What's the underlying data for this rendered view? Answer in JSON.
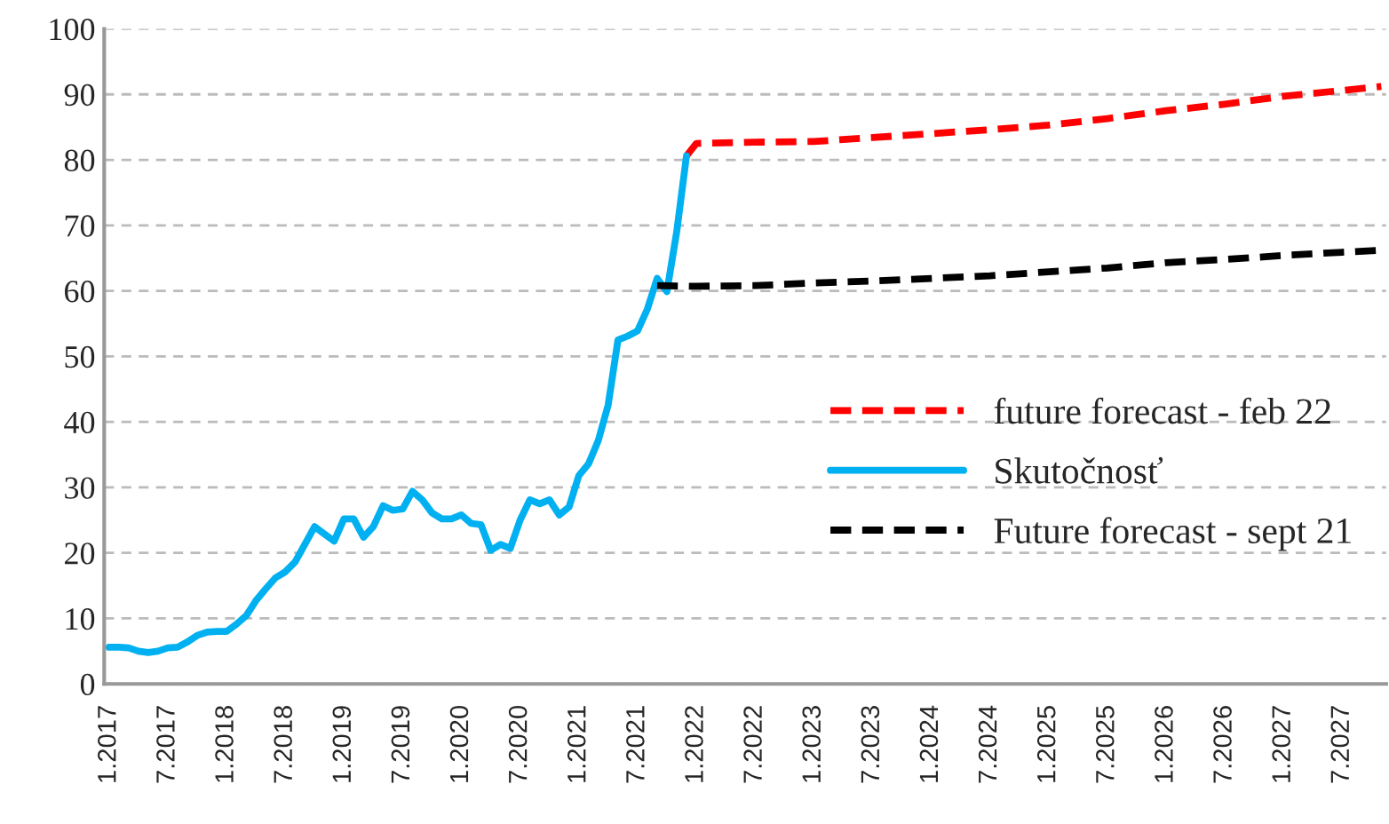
{
  "chart_data": {
    "type": "line",
    "categories": [
      "1.2017",
      null,
      null,
      null,
      null,
      null,
      "7.2017",
      null,
      null,
      null,
      null,
      null,
      "1.2018",
      null,
      null,
      null,
      null,
      null,
      "7.2018",
      null,
      null,
      null,
      null,
      null,
      "1.2019",
      null,
      null,
      null,
      null,
      null,
      "7.2019",
      null,
      null,
      null,
      null,
      null,
      "1.2020",
      null,
      null,
      null,
      null,
      null,
      "7.2020",
      null,
      null,
      null,
      null,
      null,
      "1.2021",
      null,
      null,
      null,
      null,
      null,
      "7.2021",
      null,
      null,
      null,
      null,
      null,
      "1.2022",
      null,
      null,
      null,
      null,
      null,
      "7.2022",
      null,
      null,
      null,
      null,
      null,
      "1.2023",
      null,
      null,
      null,
      null,
      null,
      "7.2023",
      null,
      null,
      null,
      null,
      null,
      "1.2024",
      null,
      null,
      null,
      null,
      null,
      "7.2024",
      null,
      null,
      null,
      null,
      null,
      "1.2025",
      null,
      null,
      null,
      null,
      null,
      "7.2025",
      null,
      null,
      null,
      null,
      null,
      "1.2026",
      null,
      null,
      null,
      null,
      null,
      "7.2026",
      null,
      null,
      null,
      null,
      null,
      "1.2027",
      null,
      null,
      null,
      null,
      null,
      "7.2027",
      null,
      null,
      null,
      null
    ],
    "series": [
      {
        "name": "future forecast - feb 22",
        "color": "#ff0000",
        "line_style": "dashed",
        "values": [
          null,
          null,
          null,
          null,
          null,
          null,
          null,
          null,
          null,
          null,
          null,
          null,
          null,
          null,
          null,
          null,
          null,
          null,
          null,
          null,
          null,
          null,
          null,
          null,
          null,
          null,
          null,
          null,
          null,
          null,
          null,
          null,
          null,
          null,
          null,
          null,
          null,
          null,
          null,
          null,
          null,
          null,
          null,
          null,
          null,
          null,
          null,
          null,
          null,
          null,
          null,
          null,
          null,
          null,
          null,
          null,
          null,
          null,
          null,
          80.6,
          82.5,
          null,
          null,
          null,
          null,
          null,
          82.7,
          null,
          null,
          null,
          null,
          null,
          82.8,
          null,
          null,
          null,
          null,
          null,
          83.4,
          null,
          null,
          null,
          null,
          null,
          84.0,
          null,
          null,
          null,
          null,
          null,
          84.6,
          null,
          null,
          null,
          null,
          null,
          85.3,
          null,
          null,
          null,
          null,
          null,
          86.3,
          null,
          null,
          null,
          null,
          null,
          87.5,
          null,
          null,
          null,
          null,
          null,
          88.5,
          null,
          null,
          null,
          null,
          null,
          89.7,
          null,
          null,
          null,
          null,
          null,
          90.6,
          null,
          null,
          null,
          91.2
        ]
      },
      {
        "name": "Skutočnosť",
        "color": "#00b0f0",
        "line_style": "solid",
        "values": [
          5.6,
          5.6,
          5.5,
          5.0,
          4.8,
          5.0,
          5.5,
          5.6,
          6.4,
          7.4,
          7.9,
          8.0,
          8.0,
          9.1,
          10.4,
          12.7,
          14.5,
          16.2,
          17.1,
          18.6,
          21.3,
          24.0,
          22.9,
          21.8,
          25.2,
          25.2,
          22.4,
          24.0,
          27.2,
          26.5,
          26.7,
          29.4,
          28.1,
          26.1,
          25.2,
          25.2,
          25.8,
          24.5,
          24.3,
          20.4,
          21.3,
          20.7,
          25.0,
          28.1,
          27.5,
          28.1,
          25.8,
          27.0,
          31.8,
          33.6,
          37.2,
          42.6,
          52.5,
          53.1,
          53.9,
          57.2,
          61.9,
          59.9,
          69.0,
          80.6,
          null,
          null,
          null,
          null,
          null,
          null,
          null,
          null,
          null,
          null,
          null,
          null,
          null,
          null,
          null,
          null,
          null,
          null,
          null,
          null,
          null,
          null,
          null,
          null,
          null,
          null,
          null,
          null,
          null,
          null,
          null,
          null,
          null,
          null,
          null,
          null,
          null,
          null,
          null,
          null,
          null,
          null,
          null,
          null,
          null,
          null,
          null,
          null,
          null,
          null,
          null,
          null,
          null,
          null,
          null,
          null,
          null,
          null,
          null,
          null,
          null,
          null,
          null,
          null,
          null,
          null,
          null,
          null,
          null,
          null,
          null
        ]
      },
      {
        "name": "Future forecast - sept 21",
        "color": "#000000",
        "line_style": "dashed",
        "values": [
          null,
          null,
          null,
          null,
          null,
          null,
          null,
          null,
          null,
          null,
          null,
          null,
          null,
          null,
          null,
          null,
          null,
          null,
          null,
          null,
          null,
          null,
          null,
          null,
          null,
          null,
          null,
          null,
          null,
          null,
          null,
          null,
          null,
          null,
          null,
          null,
          null,
          null,
          null,
          null,
          null,
          null,
          null,
          null,
          null,
          null,
          null,
          null,
          null,
          null,
          null,
          null,
          null,
          null,
          null,
          null,
          60.8,
          null,
          null,
          null,
          60.7,
          null,
          null,
          null,
          null,
          null,
          60.8,
          null,
          null,
          null,
          null,
          null,
          61.2,
          null,
          null,
          null,
          null,
          null,
          61.5,
          null,
          null,
          null,
          null,
          null,
          61.9,
          null,
          null,
          null,
          null,
          null,
          62.3,
          null,
          null,
          null,
          null,
          null,
          62.9,
          null,
          null,
          null,
          null,
          null,
          63.5,
          null,
          null,
          null,
          null,
          null,
          64.3,
          null,
          null,
          null,
          null,
          null,
          64.8,
          null,
          null,
          null,
          null,
          null,
          65.4,
          null,
          null,
          null,
          null,
          null,
          65.9,
          null,
          null,
          null,
          66.2
        ]
      }
    ],
    "ylim": [
      0,
      100
    ],
    "yticks": [
      0,
      10,
      20,
      30,
      40,
      50,
      60,
      70,
      80,
      90,
      100
    ],
    "grid": "y",
    "legend": "center right"
  }
}
